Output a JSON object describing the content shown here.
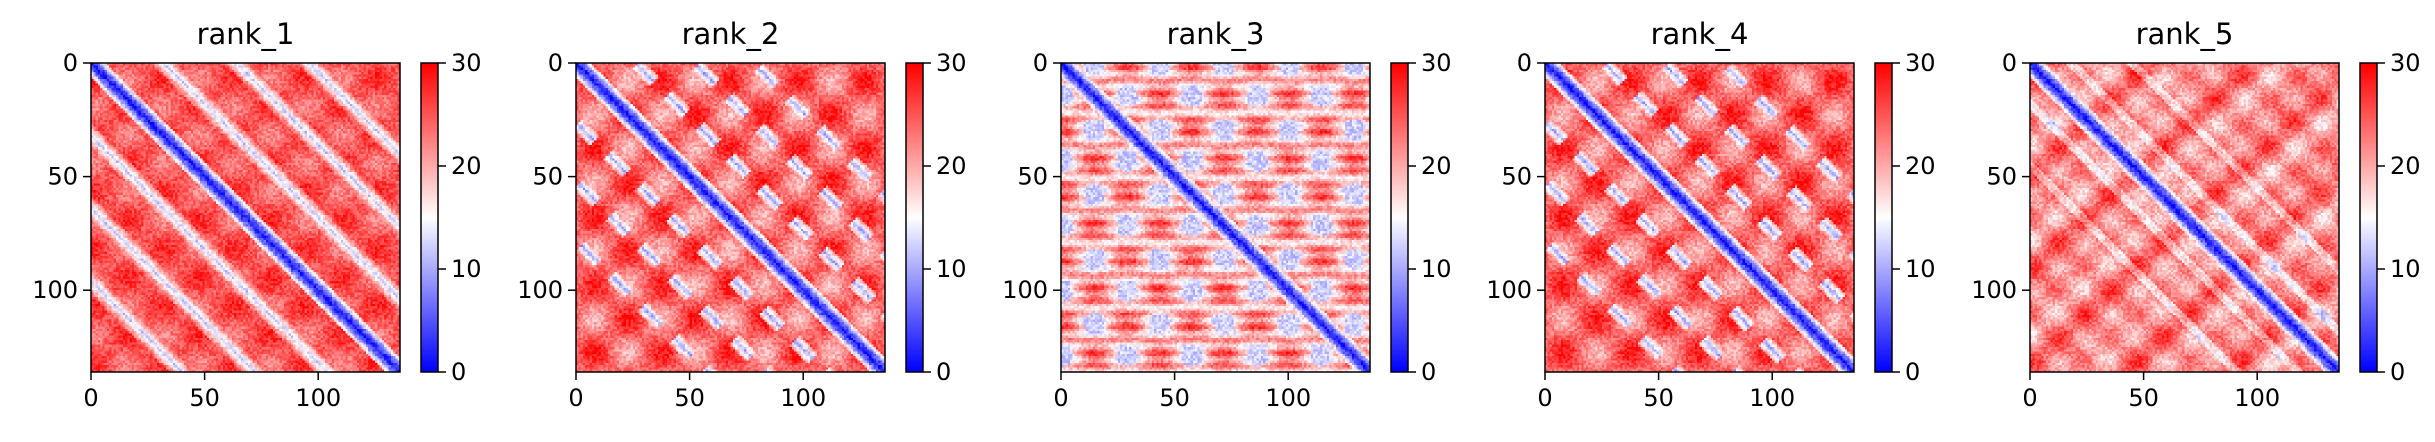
{
  "chart_data": [
    {
      "type": "heatmap",
      "title": "rank_1",
      "pattern": "bands",
      "xticks": [
        "0",
        "50",
        "100"
      ],
      "yticks": [
        "0",
        "50",
        "100"
      ],
      "xlim": [
        0,
        136
      ],
      "ylim": [
        136,
        0
      ],
      "colorbar": {
        "ticks": [
          "0",
          "10",
          "20",
          "30"
        ],
        "range": [
          0,
          30
        ],
        "colormap": "bwr"
      }
    },
    {
      "type": "heatmap",
      "title": "rank_2",
      "pattern": "blobs",
      "xticks": [
        "0",
        "50",
        "100"
      ],
      "yticks": [
        "0",
        "50",
        "100"
      ],
      "xlim": [
        0,
        136
      ],
      "ylim": [
        136,
        0
      ],
      "colorbar": {
        "ticks": [
          "0",
          "10",
          "20",
          "30"
        ],
        "range": [
          0,
          30
        ],
        "colormap": "bwr"
      }
    },
    {
      "type": "heatmap",
      "title": "rank_3",
      "pattern": "grid",
      "xticks": [
        "0",
        "50",
        "100"
      ],
      "yticks": [
        "0",
        "50",
        "100"
      ],
      "xlim": [
        0,
        136
      ],
      "ylim": [
        136,
        0
      ],
      "colorbar": {
        "ticks": [
          "0",
          "10",
          "20",
          "30"
        ],
        "range": [
          0,
          30
        ],
        "colormap": "bwr"
      }
    },
    {
      "type": "heatmap",
      "title": "rank_4",
      "pattern": "blobs",
      "xticks": [
        "0",
        "50",
        "100"
      ],
      "yticks": [
        "0",
        "50",
        "100"
      ],
      "xlim": [
        0,
        136
      ],
      "ylim": [
        136,
        0
      ],
      "colorbar": {
        "ticks": [
          "0",
          "10",
          "20",
          "30"
        ],
        "range": [
          0,
          30
        ],
        "colormap": "bwr"
      }
    },
    {
      "type": "heatmap",
      "title": "rank_5",
      "pattern": "light",
      "xticks": [
        "0",
        "50",
        "100"
      ],
      "yticks": [
        "0",
        "50",
        "100"
      ],
      "xlim": [
        0,
        136
      ],
      "ylim": [
        136,
        0
      ],
      "colorbar": {
        "ticks": [
          "0",
          "10",
          "20",
          "30"
        ],
        "range": [
          0,
          30
        ],
        "colormap": "bwr"
      }
    }
  ]
}
